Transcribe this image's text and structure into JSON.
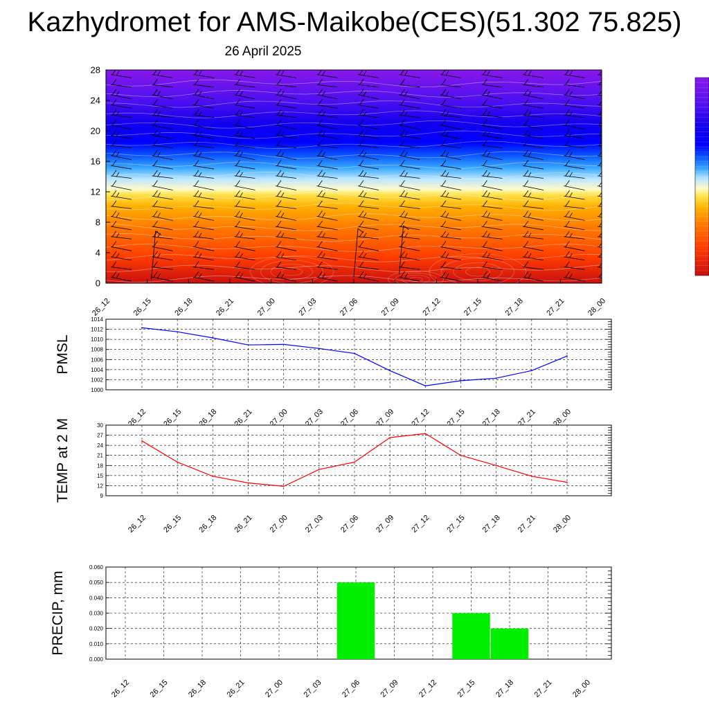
{
  "title": "Kazhydromet for AMS-Maikobe(CES)(51.302 75.825)",
  "subtitle": "26 April 2025",
  "time_labels": [
    "26_12",
    "26_15",
    "26_18",
    "26_21",
    "27_00",
    "27_03",
    "27_06",
    "27_09",
    "27_12",
    "27_15",
    "27_18",
    "27_21",
    "28_00"
  ],
  "chart_data": [
    {
      "type": "heatmap",
      "name": "cross-section",
      "x": [
        "26_12",
        "26_15",
        "26_18",
        "26_21",
        "27_00",
        "27_03",
        "27_06",
        "27_09",
        "27_12",
        "27_15",
        "27_18",
        "27_21",
        "28_00"
      ],
      "ylim": [
        0,
        28
      ],
      "yticks": [
        0,
        4,
        8,
        12,
        16,
        20,
        24,
        28
      ],
      "colorscale": [
        "#c81010",
        "#ff3c00",
        "#ff7a00",
        "#ffb000",
        "#ffe24a",
        "#fffbc8",
        "#b8e4ff",
        "#39a8ff",
        "#0a54ff",
        "#0000ff",
        "#1200ee",
        "#5010f0",
        "#8818ea"
      ],
      "wind_barbs": true
    },
    {
      "type": "line",
      "name": "pmsl",
      "ylabel": "PMSL",
      "color": "#0000ff",
      "ylim": [
        1000,
        1014
      ],
      "yticks": [
        1000,
        1002,
        1004,
        1006,
        1008,
        1010,
        1012,
        1014
      ],
      "x": [
        "26_12",
        "26_15",
        "26_18",
        "26_21",
        "27_00",
        "27_03",
        "27_06",
        "27_09",
        "27_12",
        "27_15",
        "27_18",
        "27_21",
        "28_00"
      ],
      "values": [
        1012.3,
        1011.5,
        1010.3,
        1008.9,
        1009.0,
        1008.2,
        1007.2,
        1003.8,
        1000.8,
        1001.8,
        1002.3,
        1003.8,
        1006.7
      ]
    },
    {
      "type": "line",
      "name": "temp",
      "ylabel": "TEMP at 2 M",
      "color": "#ff0000",
      "ylim": [
        9,
        30
      ],
      "yticks": [
        9,
        12,
        15,
        18,
        21,
        24,
        27,
        30
      ],
      "x": [
        "26_12",
        "26_15",
        "26_18",
        "26_21",
        "27_00",
        "27_03",
        "27_06",
        "27_09",
        "27_12",
        "27_15",
        "27_18",
        "27_21",
        "28_00"
      ],
      "values": [
        25.3,
        19.0,
        14.8,
        12.8,
        11.8,
        16.8,
        19.0,
        26.3,
        27.5,
        21.0,
        18.0,
        14.8,
        13.0
      ]
    },
    {
      "type": "bar",
      "name": "precip",
      "ylabel": "PRECIP, mm",
      "color": "#00ee00",
      "ylim": [
        0,
        0.06
      ],
      "yticks": [
        "0.000",
        "0.010",
        "0.020",
        "0.030",
        "0.040",
        "0.050",
        "0.060"
      ],
      "categories": [
        "26_12",
        "26_15",
        "26_18",
        "26_21",
        "27_00",
        "27_03",
        "27_06",
        "27_09",
        "27_12",
        "27_15",
        "27_18",
        "27_21",
        "28_00"
      ],
      "values": [
        0,
        0,
        0,
        0,
        0,
        0,
        0.05,
        0,
        0,
        0.03,
        0.02,
        0,
        0
      ]
    }
  ],
  "colorbar": {
    "colors": [
      "#8818ea",
      "#5010f0",
      "#1200ee",
      "#0000ff",
      "#0a54ff",
      "#39a8ff",
      "#b8e4ff",
      "#fffbc8",
      "#ffe24a",
      "#ffb000",
      "#ff7a00",
      "#ff3c00",
      "#c81010"
    ]
  }
}
